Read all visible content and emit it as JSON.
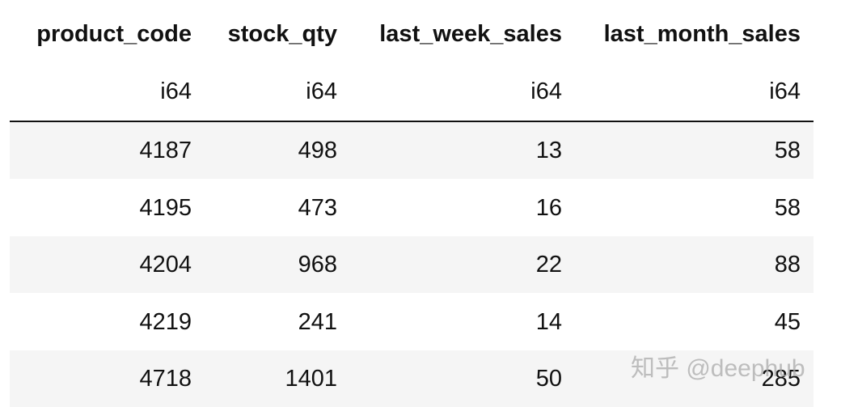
{
  "table": {
    "columns": [
      "product_code",
      "stock_qty",
      "last_week_sales",
      "last_month_sales"
    ],
    "dtypes": [
      "i64",
      "i64",
      "i64",
      "i64"
    ],
    "rows": [
      [
        4187,
        498,
        13,
        58
      ],
      [
        4195,
        473,
        16,
        58
      ],
      [
        4204,
        968,
        22,
        88
      ],
      [
        4219,
        241,
        14,
        45
      ],
      [
        4718,
        1401,
        50,
        285
      ]
    ]
  },
  "watermark": "知乎 @deephub"
}
